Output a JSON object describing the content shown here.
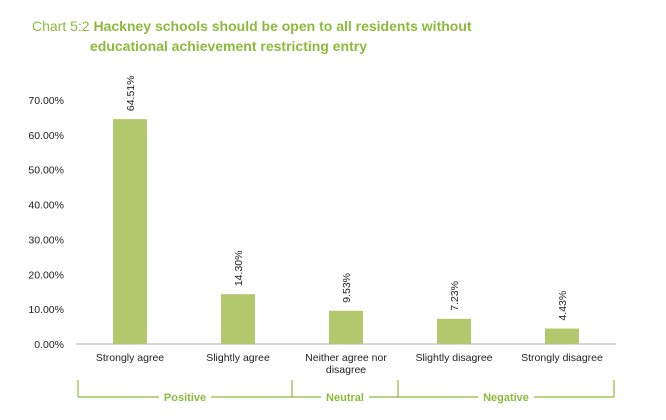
{
  "title": {
    "prefix": "Chart 5:2",
    "line1": "Hackney schools should be open to all residents without",
    "line2": "educational achievement restricting entry"
  },
  "chart_data": {
    "type": "bar",
    "title": "Hackney schools should be open to all residents without educational achievement restricting entry",
    "categories": [
      "Strongly agree",
      "Slightly agree",
      "Neither agree nor disagree",
      "Slightly disagree",
      "Strongly disagree"
    ],
    "category_lines": [
      [
        "Strongly agree"
      ],
      [
        "Slightly agree"
      ],
      [
        "Neither agree nor",
        "disagree"
      ],
      [
        "Slightly disagree"
      ],
      [
        "Strongly disagree"
      ]
    ],
    "values": [
      64.51,
      14.3,
      9.53,
      7.23,
      4.43
    ],
    "value_labels": [
      "64.51%",
      "14.30%",
      "9.53%",
      "7.23%",
      "4.43%"
    ],
    "yticks": [
      "0.00%",
      "10.00%",
      "20.00%",
      "30.00%",
      "40.00%",
      "50.00%",
      "60.00%",
      "70.00%"
    ],
    "ylim": [
      0,
      70
    ],
    "groups": [
      {
        "label": "Positive",
        "from": 0,
        "to": 1
      },
      {
        "label": "Neutral",
        "from": 2,
        "to": 2
      },
      {
        "label": "Negative",
        "from": 3,
        "to": 4
      }
    ],
    "bar_color": "#b3c86d",
    "group_color": "#8cbb3c",
    "xlabel": "",
    "ylabel": ""
  }
}
